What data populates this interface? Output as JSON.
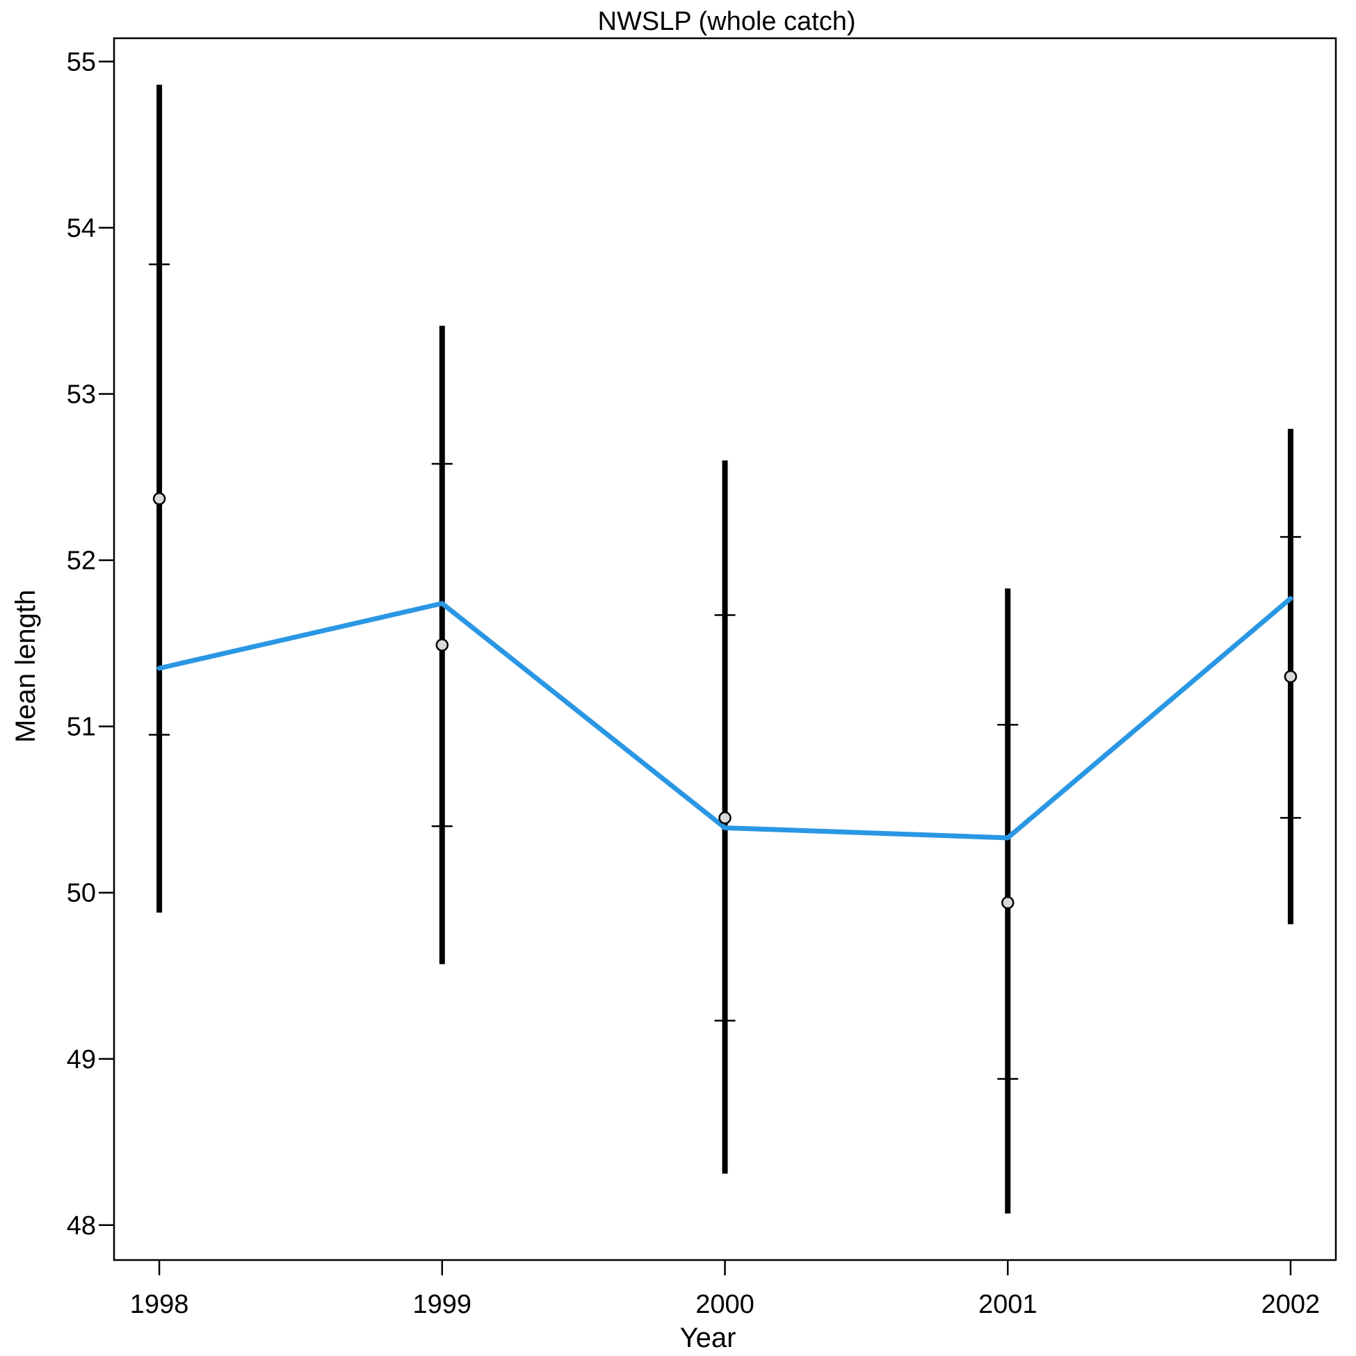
{
  "chart_data": {
    "type": "line",
    "title": "NWSLP (whole catch)",
    "xlabel": "Year",
    "ylabel": "Mean length",
    "x": [
      1998,
      1999,
      2000,
      2001,
      2002
    ],
    "xlim": [
      1997.84,
      2002.16
    ],
    "ylim": [
      47.79,
      55.14
    ],
    "x_ticks": [
      "1998",
      "1999",
      "2000",
      "2001",
      "2002"
    ],
    "y_ticks": [
      "48",
      "49",
      "50",
      "51",
      "52",
      "53",
      "54",
      "55"
    ],
    "grid": false,
    "legend": "none",
    "colors": {
      "fitted_line": "#2a97e4",
      "error_bars": "#000000",
      "observed_points_fill": "#d9d9d9",
      "observed_points_stroke": "#000000"
    },
    "series": [
      {
        "kind": "fitted_line",
        "values": [
          51.35,
          51.74,
          50.39,
          50.33,
          51.77
        ]
      },
      {
        "kind": "observed_points",
        "values": [
          52.37,
          51.49,
          50.45,
          49.94,
          51.3
        ]
      },
      {
        "kind": "interval_wide",
        "lower": [
          49.88,
          49.57,
          48.31,
          48.07,
          49.81
        ],
        "upper": [
          54.86,
          53.41,
          52.6,
          51.83,
          52.79
        ]
      },
      {
        "kind": "interval_narrow",
        "lower": [
          50.95,
          50.4,
          49.23,
          48.88,
          50.45
        ],
        "upper": [
          53.78,
          52.58,
          51.67,
          51.01,
          52.14
        ]
      }
    ]
  }
}
